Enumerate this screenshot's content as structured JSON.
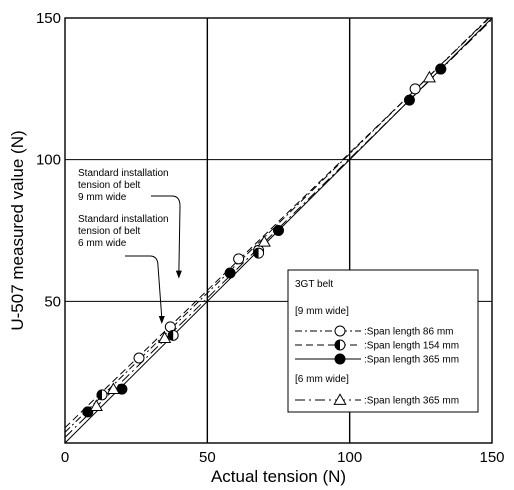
{
  "chart_data": {
    "type": "scatter",
    "title": "",
    "xlabel": "Actual tension (N)",
    "ylabel": "U-507 measured value (N)",
    "xlim": [
      0,
      150
    ],
    "ylim": [
      0,
      150
    ],
    "xticks": [
      "0",
      "50",
      "100",
      "150"
    ],
    "yticks": [
      "50",
      "100",
      "150"
    ],
    "grid": true,
    "legend_placement": "bottom-right",
    "legend": {
      "title": "3GT belt",
      "group1": "[9 mm wide]",
      "group2": "[6 mm wide]"
    },
    "series": [
      {
        "name": ":Span length 86 mm",
        "marker": "open-circle",
        "line": "dash-dot",
        "points": [
          [
            26,
            30
          ],
          [
            37,
            41
          ],
          [
            61,
            65
          ],
          [
            68,
            68
          ],
          [
            123,
            125
          ]
        ],
        "fit": [
          [
            0,
            3.8
          ],
          [
            150,
            151.2
          ]
        ]
      },
      {
        "name": ":Span length 154 mm",
        "marker": "half-circle",
        "line": "dashed",
        "points": [
          [
            13,
            17
          ],
          [
            38,
            38
          ],
          [
            68,
            67
          ],
          [
            132,
            132
          ]
        ],
        "fit": [
          [
            0,
            5.4
          ],
          [
            150,
            150.9
          ]
        ]
      },
      {
        "name": ":Span length 365 mm",
        "marker": "filled-circle",
        "line": "solid",
        "points": [
          [
            8,
            11
          ],
          [
            20,
            19
          ],
          [
            58,
            60
          ],
          [
            75,
            75
          ],
          [
            121,
            121
          ],
          [
            132,
            132
          ]
        ],
        "fit": [
          [
            0,
            0
          ],
          [
            150,
            150
          ]
        ]
      },
      {
        "name": ":Span length 365 mm",
        "marker": "open-triangle",
        "line": "long-dash-dot",
        "points": [
          [
            11,
            13
          ],
          [
            17,
            19
          ],
          [
            35,
            37
          ],
          [
            70,
            71
          ],
          [
            128,
            129
          ]
        ],
        "fit": [
          [
            0,
            2.0
          ],
          [
            150,
            149.5
          ]
        ]
      }
    ],
    "annotations": [
      {
        "lines": [
          "Standard installation",
          "tension of belt",
          "9 mm wide"
        ],
        "target": [
          40,
          58
        ]
      },
      {
        "lines": [
          "Standard installation",
          "tension of belt",
          "6 mm wide"
        ],
        "target": [
          34,
          42
        ]
      }
    ]
  }
}
